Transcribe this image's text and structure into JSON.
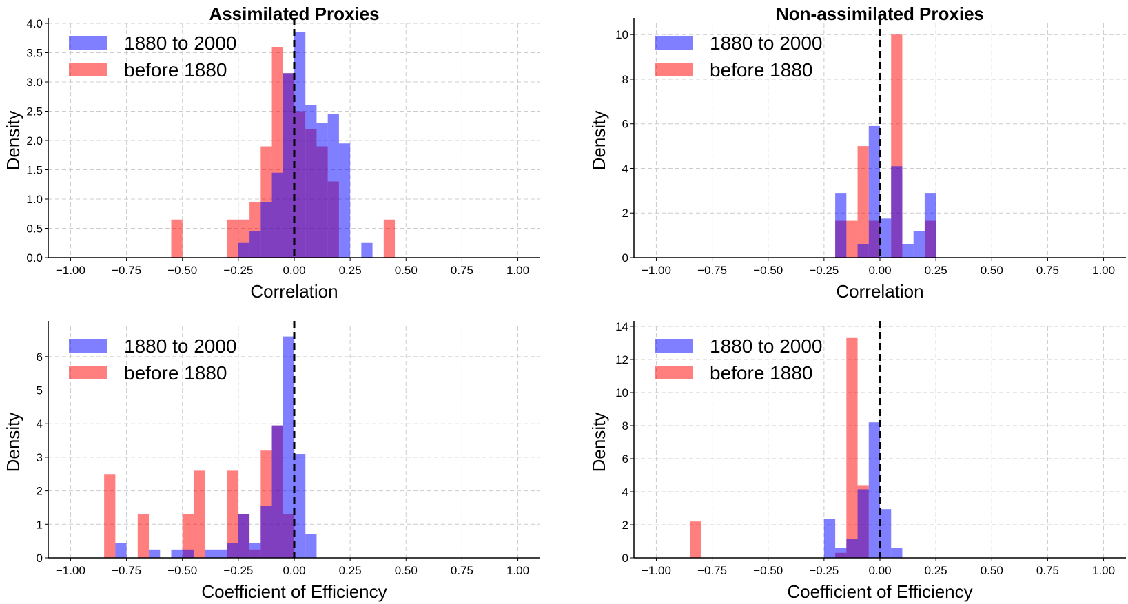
{
  "colors": {
    "recent": "#0000ff",
    "early": "#ff0000",
    "grid": "#cccccc",
    "zero_line": "#000000"
  },
  "chart_data": [
    {
      "type": "bar",
      "title": "Assimilated Proxies",
      "xlabel": "Correlation",
      "ylabel": "Density",
      "xlim": [
        -1.1,
        1.1
      ],
      "ylim": [
        0,
        4.0
      ],
      "xticks": [
        -1.0,
        -0.75,
        -0.5,
        -0.25,
        0.0,
        0.25,
        0.5,
        0.75,
        1.0
      ],
      "xtick_labels": [
        "−1.00",
        "−0.75",
        "−0.50",
        "−0.25",
        "0.00",
        "0.25",
        "0.50",
        "0.75",
        "1.00"
      ],
      "yticks": [
        0,
        0.5,
        1.0,
        1.5,
        2.0,
        2.5,
        3.0,
        3.5,
        4.0
      ],
      "ytick_labels": [
        "0.0",
        "0.5",
        "1.0",
        "1.5",
        "2.0",
        "2.5",
        "3.0",
        "3.5",
        "4.0"
      ],
      "grid": true,
      "legend": "top-left",
      "vline": 0.0,
      "series": [
        {
          "name": "1880 to 2000",
          "color": "#0000ff",
          "bin_edges": [
            -0.25,
            -0.2,
            -0.15,
            -0.1,
            -0.05,
            0.0,
            0.05,
            0.1,
            0.15,
            0.2,
            0.25,
            0.3,
            0.35
          ],
          "values": [
            0.25,
            0.45,
            0.95,
            1.45,
            3.15,
            3.85,
            2.6,
            2.3,
            2.45,
            1.95,
            0,
            0.25
          ]
        },
        {
          "name": "before 1880",
          "color": "#ff0000",
          "bin_edges": [
            -0.55,
            -0.5,
            -0.45,
            -0.4,
            -0.35,
            -0.3,
            -0.25,
            -0.2,
            -0.15,
            -0.1,
            -0.05,
            0.0,
            0.05,
            0.1,
            0.15,
            0.2,
            0.25,
            0.3,
            0.35,
            0.4,
            0.45
          ],
          "values": [
            0.65,
            0,
            0,
            0,
            0,
            0.65,
            0.65,
            0.95,
            1.9,
            3.6,
            3.15,
            2.5,
            2.2,
            1.9,
            1.3,
            0,
            0,
            0,
            0,
            0.65
          ]
        }
      ]
    },
    {
      "type": "bar",
      "title": "Non-assimilated Proxies",
      "xlabel": "Correlation",
      "ylabel": "Density",
      "xlim": [
        -1.1,
        1.1
      ],
      "ylim": [
        0,
        10.5
      ],
      "xticks": [
        -1.0,
        -0.75,
        -0.5,
        -0.25,
        0.0,
        0.25,
        0.5,
        0.75,
        1.0
      ],
      "xtick_labels": [
        "−1.00",
        "−0.75",
        "−0.50",
        "−0.25",
        "0.00",
        "0.25",
        "0.50",
        "0.75",
        "1.00"
      ],
      "yticks": [
        0,
        2,
        4,
        6,
        8,
        10
      ],
      "ytick_labels": [
        "0",
        "2",
        "4",
        "6",
        "8",
        "10"
      ],
      "grid": true,
      "legend": "top-left",
      "vline": 0.0,
      "series": [
        {
          "name": "1880 to 2000",
          "color": "#0000ff",
          "bin_edges": [
            -0.2,
            -0.15,
            -0.1,
            -0.05,
            0.0,
            0.05,
            0.1,
            0.15,
            0.2,
            0.25
          ],
          "values": [
            2.9,
            0,
            0.6,
            5.9,
            1.75,
            4.1,
            0.6,
            1.2,
            2.9
          ]
        },
        {
          "name": "before 1880",
          "color": "#ff0000",
          "bin_edges": [
            -0.2,
            -0.15,
            -0.1,
            -0.05,
            0.0,
            0.05,
            0.1,
            0.15,
            0.2,
            0.25
          ],
          "values": [
            1.65,
            1.65,
            5.0,
            1.65,
            0,
            10.0,
            0,
            0,
            1.65
          ]
        }
      ]
    },
    {
      "type": "bar",
      "title": "",
      "xlabel": "Coefficient of Efficiency",
      "ylabel": "Density",
      "xlim": [
        -1.1,
        1.1
      ],
      "ylim": [
        0,
        6.9
      ],
      "xticks": [
        -1.0,
        -0.75,
        -0.5,
        -0.25,
        0.0,
        0.25,
        0.5,
        0.75,
        1.0
      ],
      "xtick_labels": [
        "−1.00",
        "−0.75",
        "−0.50",
        "−0.25",
        "0.00",
        "0.25",
        "0.50",
        "0.75",
        "1.00"
      ],
      "yticks": [
        0,
        1,
        2,
        3,
        4,
        5,
        6
      ],
      "ytick_labels": [
        "0",
        "1",
        "2",
        "3",
        "4",
        "5",
        "6"
      ],
      "grid": true,
      "legend": "top-left",
      "vline": 0.0,
      "series": [
        {
          "name": "1880 to 2000",
          "color": "#0000ff",
          "bin_edges": [
            -0.85,
            -0.8,
            -0.75,
            -0.7,
            -0.65,
            -0.6,
            -0.55,
            -0.5,
            -0.45,
            -0.4,
            -0.35,
            -0.3,
            -0.25,
            -0.2,
            -0.15,
            -0.1,
            -0.05,
            0.0,
            0.05,
            0.1
          ],
          "values": [
            0,
            0.45,
            0,
            0,
            0.25,
            0,
            0.25,
            0.25,
            0,
            0.25,
            0.25,
            0.45,
            1.3,
            0.45,
            1.55,
            3.95,
            6.6,
            3.1,
            0.7
          ]
        },
        {
          "name": "before 1880",
          "color": "#ff0000",
          "bin_edges": [
            -0.85,
            -0.8,
            -0.75,
            -0.7,
            -0.65,
            -0.6,
            -0.55,
            -0.5,
            -0.45,
            -0.4,
            -0.35,
            -0.3,
            -0.25,
            -0.2,
            -0.15,
            -0.1,
            -0.05,
            0.0
          ],
          "values": [
            2.5,
            0,
            0,
            1.3,
            0,
            0,
            0,
            1.3,
            2.6,
            0,
            0,
            2.6,
            1.3,
            0.25,
            3.2,
            3.95,
            1.3
          ]
        }
      ]
    },
    {
      "type": "bar",
      "title": "",
      "xlabel": "Coefficient of Efficiency",
      "ylabel": "Density",
      "xlim": [
        -1.1,
        1.1
      ],
      "ylim": [
        0,
        14.0
      ],
      "xticks": [
        -1.0,
        -0.75,
        -0.5,
        -0.25,
        0.0,
        0.25,
        0.5,
        0.75,
        1.0
      ],
      "xtick_labels": [
        "−1.00",
        "−0.75",
        "−0.50",
        "−0.25",
        "0.00",
        "0.25",
        "0.50",
        "0.75",
        "1.00"
      ],
      "yticks": [
        0,
        2,
        4,
        6,
        8,
        10,
        12,
        14
      ],
      "ytick_labels": [
        "0",
        "2",
        "4",
        "6",
        "8",
        "10",
        "12",
        "14"
      ],
      "grid": true,
      "legend": "top-left",
      "vline": 0.0,
      "series": [
        {
          "name": "1880 to 2000",
          "color": "#0000ff",
          "bin_edges": [
            -0.25,
            -0.2,
            -0.15,
            -0.1,
            -0.05,
            0.0,
            0.05,
            0.1
          ],
          "values": [
            2.35,
            0.6,
            1.15,
            4.15,
            8.2,
            2.95,
            0.6
          ]
        },
        {
          "name": "before 1880",
          "color": "#ff0000",
          "bin_edges": [
            -0.85,
            -0.8,
            -0.75,
            -0.7,
            -0.65,
            -0.6,
            -0.55,
            -0.5,
            -0.45,
            -0.4,
            -0.35,
            -0.3,
            -0.25,
            -0.2,
            -0.15,
            -0.1,
            -0.05
          ],
          "values": [
            2.2,
            0,
            0,
            0,
            0,
            0,
            0,
            0,
            0,
            0,
            0,
            0,
            0,
            0.3,
            13.3,
            4.4
          ]
        }
      ]
    }
  ]
}
